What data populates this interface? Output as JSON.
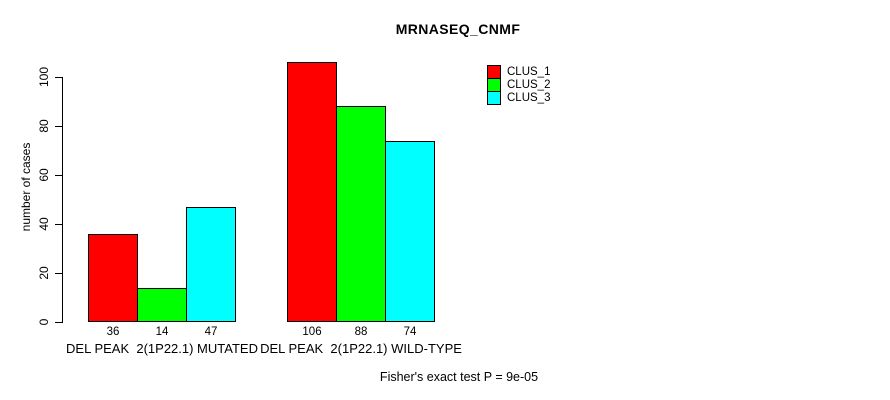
{
  "chart_data": {
    "type": "bar",
    "title": "MRNASEQ_CNMF",
    "xlabel": "",
    "ylabel": "number of cases",
    "ylim": [
      0,
      106
    ],
    "yticks": [
      0,
      20,
      40,
      60,
      80,
      100
    ],
    "grid": false,
    "legend_position": "top-right",
    "categories": [
      "DEL PEAK  2(1P22.1) MUTATED",
      "DEL PEAK  2(1P22.1) WILD-TYPE"
    ],
    "series": [
      {
        "name": "CLUS_1",
        "color": "#ff0000",
        "values": [
          36,
          106
        ]
      },
      {
        "name": "CLUS_2",
        "color": "#00ff00",
        "values": [
          14,
          88
        ]
      },
      {
        "name": "CLUS_3",
        "color": "#00ffff",
        "values": [
          47,
          74
        ]
      }
    ],
    "bar_value_labels": [
      [
        "36",
        "14",
        "47"
      ],
      [
        "106",
        "88",
        "74"
      ]
    ],
    "annotation": "Fisher's exact test P = 9e-05",
    "colors": {
      "background": "#ffffff",
      "axis": "#000000",
      "text": "#000000"
    }
  }
}
